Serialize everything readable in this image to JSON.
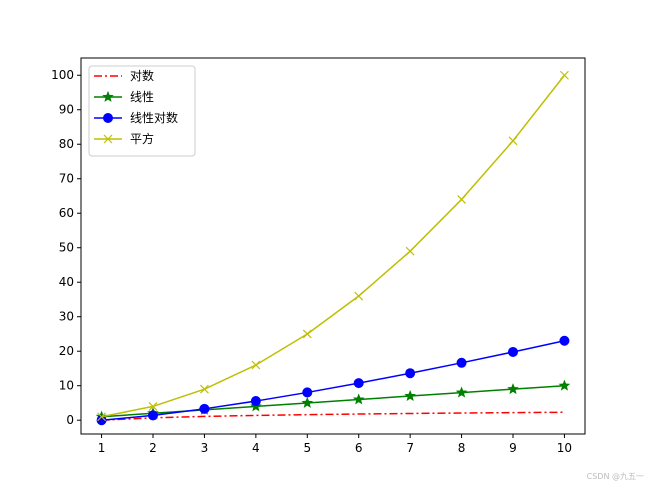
{
  "chart_data": {
    "type": "line",
    "x": [
      1,
      2,
      3,
      4,
      5,
      6,
      7,
      8,
      9,
      10
    ],
    "xlim": [
      0.6,
      10.4
    ],
    "ylim": [
      -4,
      105
    ],
    "xticks": [
      1,
      2,
      3,
      4,
      5,
      6,
      7,
      8,
      9,
      10
    ],
    "yticks": [
      0,
      10,
      20,
      30,
      40,
      50,
      60,
      70,
      80,
      90,
      100
    ],
    "grid": false,
    "legend_position": "upper-left",
    "series": [
      {
        "name": "对数",
        "color": "#ff0000",
        "line_style": "dash-dot",
        "marker": "none",
        "values": [
          0,
          0.69,
          1.1,
          1.39,
          1.61,
          1.79,
          1.95,
          2.08,
          2.2,
          2.3
        ]
      },
      {
        "name": "线性",
        "color": "#008000",
        "line_style": "solid",
        "marker": "star",
        "values": [
          1,
          2,
          3,
          4,
          5,
          6,
          7,
          8,
          9,
          10
        ]
      },
      {
        "name": "线性对数",
        "color": "#0000ff",
        "line_style": "solid",
        "marker": "circle",
        "values": [
          0,
          1.39,
          3.3,
          5.55,
          8.05,
          10.75,
          13.62,
          16.64,
          19.78,
          23.03
        ]
      },
      {
        "name": "平方",
        "color": "#bfbf00",
        "line_style": "solid",
        "marker": "x",
        "values": [
          1,
          4,
          9,
          16,
          25,
          36,
          49,
          64,
          81,
          100
        ]
      }
    ]
  },
  "watermark": "CSDN @九五一"
}
